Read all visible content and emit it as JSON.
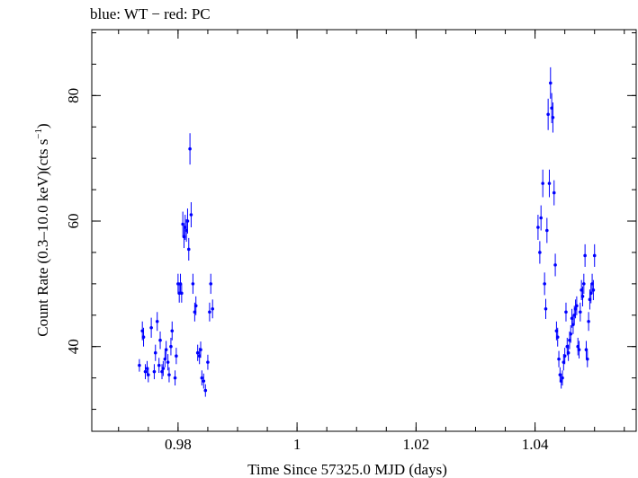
{
  "chart_data": {
    "type": "scatter",
    "title": "blue: WT − red: PC",
    "xlabel": "Time Since 57325.0 MJD (days)",
    "ylabel_parts": [
      "Count Rate (0.3–10.0 keV)(cts s",
      "−1",
      ")"
    ],
    "xlim": [
      0.9655,
      1.057
    ],
    "ylim": [
      26.5,
      90.5
    ],
    "x_ticks": [
      0.98,
      1.0,
      1.02,
      1.04
    ],
    "x_tick_labels": [
      "0.98",
      "1",
      "1.02",
      "1.04"
    ],
    "x_minor_step": 0.005,
    "y_ticks": [
      40,
      60,
      80
    ],
    "y_tick_labels": [
      "40",
      "60",
      "80"
    ],
    "y_minor_step": 5,
    "grid": false,
    "colors": {
      "points": "#0000ff",
      "axes": "#000000"
    },
    "series": [
      {
        "x": [
          0.9735,
          0.974,
          0.9742,
          0.9745,
          0.9748,
          0.975,
          0.9755,
          0.976,
          0.9762,
          0.9765,
          0.9768,
          0.977,
          0.9773,
          0.9775,
          0.9778,
          0.978,
          0.9783,
          0.9785,
          0.9788,
          0.979,
          0.9795,
          0.9797,
          0.98,
          0.9802,
          0.9804,
          0.9806,
          0.9808,
          0.981,
          0.9812,
          0.9814,
          0.9816,
          0.9818,
          0.982,
          0.9822,
          0.9825,
          0.9828,
          0.983,
          0.9833,
          0.9836,
          0.9838,
          0.984,
          0.9843,
          0.9846,
          0.985,
          0.9853,
          0.9855,
          0.9858
        ],
        "y": [
          37.0,
          42.5,
          41.5,
          36.0,
          36.5,
          35.5,
          43.0,
          36.0,
          39.0,
          44.0,
          37.0,
          41.0,
          36.0,
          36.5,
          38.0,
          39.5,
          37.5,
          35.5,
          40.0,
          42.5,
          35.0,
          38.5,
          50.0,
          48.5,
          50.0,
          48.5,
          59.5,
          57.5,
          59.0,
          58.5,
          60.0,
          55.5,
          71.5,
          61.0,
          50.0,
          45.5,
          46.5,
          39.0,
          38.5,
          39.5,
          35.0,
          34.5,
          33.0,
          37.5,
          45.5,
          50.0,
          46.0
        ],
        "yerr": [
          1.0,
          1.5,
          1.5,
          1.2,
          1.2,
          1.2,
          1.6,
          1.2,
          1.3,
          1.5,
          1.2,
          1.4,
          1.2,
          1.2,
          1.3,
          1.4,
          1.3,
          1.2,
          1.4,
          1.5,
          1.2,
          1.3,
          1.6,
          1.5,
          1.6,
          1.5,
          2.0,
          1.8,
          2.0,
          1.8,
          2.0,
          1.8,
          2.5,
          2.0,
          1.6,
          1.5,
          1.5,
          1.3,
          1.3,
          1.3,
          1.2,
          1.2,
          1.0,
          1.2,
          1.5,
          1.6,
          1.5
        ]
      },
      {
        "x": [
          1.0405,
          1.0408,
          1.041,
          1.0413,
          1.0416,
          1.0418,
          1.042,
          1.0422,
          1.0424,
          1.0426,
          1.0428,
          1.043,
          1.0432,
          1.0434,
          1.0436,
          1.0438,
          1.044,
          1.0442,
          1.0444,
          1.0446,
          1.0448,
          1.045,
          1.0452,
          1.0454,
          1.0456,
          1.0458,
          1.046,
          1.0462,
          1.0464,
          1.0466,
          1.0468,
          1.047,
          1.0472,
          1.0474,
          1.0476,
          1.0478,
          1.048,
          1.0482,
          1.0484,
          1.0486,
          1.0488,
          1.049,
          1.0492,
          1.0494,
          1.0496,
          1.0498,
          1.05
        ],
        "y": [
          59.0,
          55.0,
          60.5,
          66.0,
          50.0,
          46.0,
          58.5,
          77.0,
          66.0,
          82.0,
          78.0,
          76.5,
          64.5,
          53.0,
          42.5,
          41.5,
          38.0,
          35.5,
          34.5,
          35.0,
          37.5,
          38.5,
          45.5,
          40.0,
          39.0,
          41.0,
          42.0,
          44.5,
          43.5,
          45.0,
          46.0,
          46.5,
          40.0,
          39.5,
          45.5,
          49.0,
          48.0,
          50.0,
          54.5,
          39.5,
          38.0,
          44.0,
          47.5,
          48.5,
          50.0,
          49.0,
          54.5
        ],
        "yerr": [
          2.0,
          1.8,
          2.0,
          2.2,
          1.8,
          1.6,
          2.0,
          2.5,
          2.2,
          2.5,
          2.4,
          2.4,
          2.0,
          1.8,
          1.5,
          1.5,
          1.3,
          1.2,
          1.2,
          1.2,
          1.3,
          1.3,
          1.5,
          1.4,
          1.3,
          1.4,
          1.4,
          1.5,
          1.5,
          1.5,
          1.5,
          1.5,
          1.4,
          1.4,
          1.5,
          1.6,
          1.6,
          1.6,
          1.8,
          1.4,
          1.3,
          1.5,
          1.6,
          1.6,
          1.6,
          1.6,
          1.8
        ]
      }
    ]
  }
}
